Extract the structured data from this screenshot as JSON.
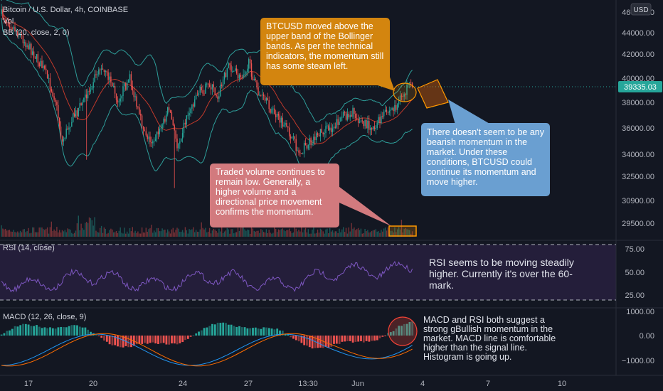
{
  "header": {
    "symbol_line": "Bitcoin / U.S. Dollar, 4h, COINBASE",
    "vol_label": "Vol",
    "bb_label": "BB (20, close, 2, 0)",
    "rsi_label": "RSI (14, close)",
    "macd_label": "MACD (12, 26, close, 9)",
    "currency_badge": "USD",
    "last_price": "39335.03"
  },
  "price_axis": [
    "46000.00",
    "44000.00",
    "42000.00",
    "40000.00",
    "38000.00",
    "36000.00",
    "34000.00",
    "32500.00",
    "30900.00",
    "29500.00"
  ],
  "rsi_axis": [
    "75.00",
    "50.00",
    "25.00"
  ],
  "macd_axis": [
    "1000.00",
    "0.00",
    "−1000.00"
  ],
  "time_axis": [
    "17",
    "20",
    "24",
    "27",
    "13:30",
    "Jun",
    "4",
    "7",
    "10"
  ],
  "notes": {
    "orange": "BTCUSD moved above the upper band of the Bollinger bands. As per the technical indicators, the momentum still has some steam left.",
    "blue": "There doesn't seem to be any bearish momentum in the market. Under these conditions, BTCUSD could continue its momentum and move higher.",
    "red": "Traded volume continues to remain low. Generally, a higher volume and a directional price movement confirms the momentum.",
    "rsi": "RSI seems to be moving steadily higher. Currently it's over the 60-mark.",
    "macd": "MACD and RSI both suggest a strong gBullish momentum in the market. MACD line is comfortable higher than the signal line. Histogram is going up."
  },
  "colors": {
    "up": "#26a69a",
    "down": "#ef5350",
    "bb_band": "#2e9e9a",
    "bb_basis": "#c0392b",
    "rsi_line": "#7e57c2",
    "macd_line": "#2196f3",
    "signal_line": "#ff6d00",
    "price_tag": "#26a69a"
  }
}
